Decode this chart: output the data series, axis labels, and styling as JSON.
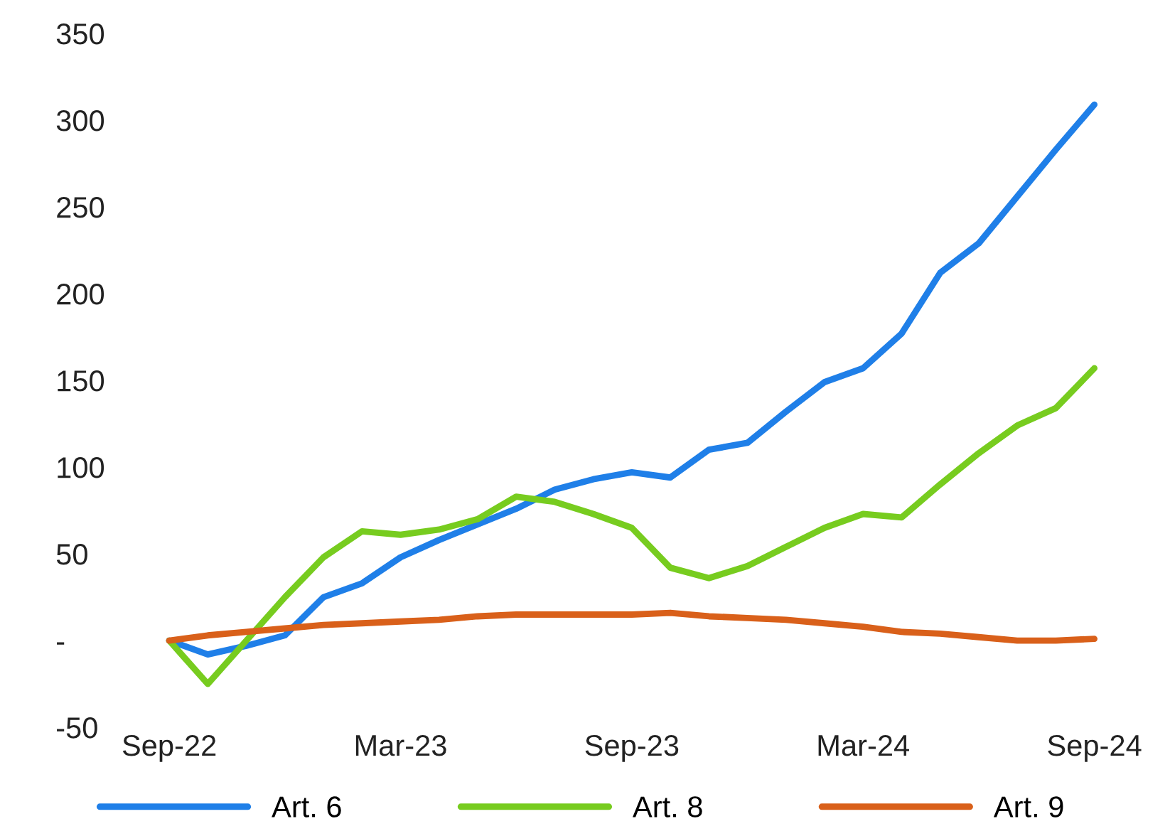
{
  "chart_data": {
    "type": "line",
    "categories": [
      "Sep-22",
      null,
      null,
      null,
      null,
      null,
      "Mar-23",
      null,
      null,
      null,
      null,
      null,
      "Sep-23",
      null,
      null,
      null,
      null,
      null,
      "Mar-24",
      null,
      null,
      null,
      null,
      null,
      "Sep-24"
    ],
    "series": [
      {
        "name": "Art. 6",
        "color": "#1f7fe8",
        "values": [
          0,
          -8,
          -3,
          3,
          25,
          33,
          48,
          58,
          67,
          76,
          87,
          93,
          97,
          94,
          110,
          114,
          132,
          149,
          157,
          177,
          212,
          229,
          256,
          283,
          309
        ]
      },
      {
        "name": "Art. 8",
        "color": "#77cc1f",
        "values": [
          0,
          -25,
          0,
          25,
          48,
          63,
          61,
          64,
          70,
          83,
          80,
          73,
          65,
          42,
          36,
          43,
          54,
          65,
          73,
          71,
          90,
          108,
          124,
          134,
          157
        ]
      },
      {
        "name": "Art. 9",
        "color": "#d9601a",
        "values": [
          0,
          3,
          5,
          7,
          9,
          10,
          11,
          12,
          14,
          15,
          15,
          15,
          15,
          16,
          14,
          13,
          12,
          10,
          8,
          5,
          4,
          2,
          0,
          0,
          1
        ]
      }
    ],
    "ylim": [
      -50,
      350
    ],
    "yticks": [
      -50,
      {
        "value": 0,
        "label": "-"
      },
      50,
      100,
      150,
      200,
      250,
      300,
      350
    ],
    "grid": false,
    "legend": "bottom",
    "marker": "none",
    "line_style": "solid"
  }
}
